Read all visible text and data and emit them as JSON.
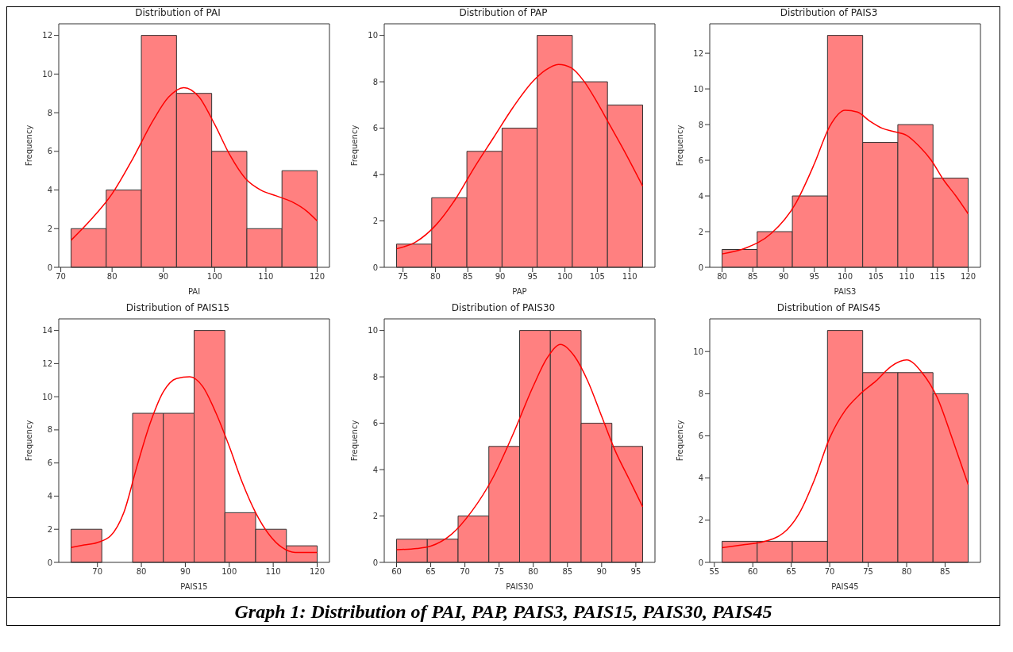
{
  "chart_data": [
    {
      "type": "histogram",
      "title": "Distribution of PAI",
      "xlabel": "PAI",
      "ylabel": "Frequency",
      "xlim": [
        69.6,
        122.4
      ],
      "xticks": [
        70,
        80,
        90,
        100,
        110,
        120
      ],
      "ylim": [
        0,
        12.6
      ],
      "yticks": [
        0,
        2,
        4,
        6,
        8,
        10,
        12
      ],
      "series": [
        {
          "type": "histogram",
          "color": "#ff8080",
          "bins": [
            72,
            78.86,
            85.71,
            92.57,
            99.43,
            106.29,
            113.14,
            120
          ],
          "values": [
            2,
            4,
            12,
            9,
            6,
            2,
            5
          ]
        },
        {
          "type": "line",
          "color": "#ff0000",
          "x": [
            72,
            76,
            80,
            84,
            88,
            91,
            94,
            97,
            100,
            103,
            106,
            109,
            112,
            115,
            118,
            120
          ],
          "values": [
            1.4,
            2.5,
            3.8,
            5.6,
            7.6,
            8.8,
            9.3,
            8.8,
            7.4,
            5.8,
            4.6,
            4.0,
            3.7,
            3.4,
            2.9,
            2.4
          ]
        }
      ]
    },
    {
      "type": "histogram",
      "title": "Distribution of PAP",
      "xlabel": "PAP",
      "ylabel": "Frequency",
      "xlim": [
        72.1,
        113.9
      ],
      "xticks": [
        75,
        80,
        85,
        90,
        95,
        100,
        105,
        110
      ],
      "ylim": [
        0,
        10.5
      ],
      "yticks": [
        0,
        2,
        4,
        6,
        8,
        10
      ],
      "series": [
        {
          "type": "histogram",
          "color": "#ff8080",
          "bins": [
            74,
            79.43,
            84.86,
            90.29,
            95.71,
            101.14,
            106.57,
            112
          ],
          "values": [
            1,
            3,
            5,
            6,
            10,
            8,
            7
          ]
        },
        {
          "type": "line",
          "color": "#ff0000",
          "x": [
            74,
            77,
            80,
            83,
            86,
            89,
            92,
            95,
            97,
            99,
            101,
            103,
            105,
            107,
            109,
            112
          ],
          "values": [
            0.8,
            1.1,
            1.8,
            2.9,
            4.3,
            5.6,
            6.9,
            8.0,
            8.5,
            8.75,
            8.6,
            8.0,
            7.1,
            6.1,
            5.1,
            3.5
          ]
        }
      ]
    },
    {
      "type": "histogram",
      "title": "Distribution of PAIS3",
      "xlabel": "PAIS3",
      "ylabel": "Frequency",
      "xlim": [
        78,
        122
      ],
      "xticks": [
        80,
        85,
        90,
        95,
        100,
        105,
        110,
        115,
        120
      ],
      "ylim": [
        0,
        13.65
      ],
      "yticks": [
        0,
        2,
        4,
        6,
        8,
        10,
        12
      ],
      "series": [
        {
          "type": "histogram",
          "color": "#ff8080",
          "bins": [
            80,
            85.71,
            91.43,
            97.14,
            102.86,
            108.57,
            114.29,
            120
          ],
          "values": [
            1,
            2,
            4,
            13,
            7,
            8,
            5
          ]
        },
        {
          "type": "line",
          "color": "#ff0000",
          "x": [
            80,
            84,
            88,
            92,
            95,
            97.5,
            100,
            102,
            104,
            106,
            108,
            110,
            112,
            114,
            116,
            118,
            120
          ],
          "values": [
            0.75,
            1.1,
            1.9,
            3.6,
            5.8,
            7.9,
            8.8,
            8.7,
            8.2,
            7.8,
            7.6,
            7.4,
            6.8,
            6.0,
            4.9,
            4.0,
            3.0
          ]
        }
      ]
    },
    {
      "type": "histogram",
      "title": "Distribution of PAIS15",
      "xlabel": "PAIS15",
      "ylabel": "Frequency",
      "xlim": [
        61.2,
        122.8
      ],
      "xticks": [
        70,
        80,
        90,
        100,
        110,
        120
      ],
      "ylim": [
        0,
        14.7
      ],
      "yticks": [
        0,
        2,
        4,
        6,
        8,
        10,
        12,
        14
      ],
      "series": [
        {
          "type": "histogram",
          "color": "#ff8080",
          "bins": [
            64,
            71,
            78,
            85,
            92,
            99,
            106,
            113,
            120
          ],
          "values": [
            2,
            0,
            9,
            9,
            14,
            3,
            2,
            1
          ]
        },
        {
          "type": "line",
          "color": "#ff0000",
          "x": [
            64,
            67,
            70,
            73,
            76,
            79,
            82,
            85,
            88,
            91,
            94,
            97,
            100,
            103,
            106,
            109,
            112,
            115,
            120
          ],
          "values": [
            0.9,
            1.05,
            1.2,
            1.6,
            3.0,
            5.8,
            8.4,
            10.3,
            11.1,
            11.2,
            10.6,
            9.0,
            7.0,
            4.8,
            3.0,
            1.7,
            0.9,
            0.6,
            0.6
          ]
        }
      ]
    },
    {
      "type": "histogram",
      "title": "Distribution of PAIS30",
      "xlabel": "PAIS30",
      "ylabel": "Frequency",
      "xlim": [
        58.2,
        97.8
      ],
      "xticks": [
        60,
        65,
        70,
        75,
        80,
        85,
        90,
        95
      ],
      "ylim": [
        0,
        10.5
      ],
      "yticks": [
        0,
        2,
        4,
        6,
        8,
        10
      ],
      "series": [
        {
          "type": "histogram",
          "color": "#ff8080",
          "bins": [
            60,
            64.5,
            69,
            73.5,
            78,
            82.5,
            87,
            91.5,
            96
          ],
          "values": [
            1,
            1,
            2,
            5,
            10,
            10,
            6,
            5
          ]
        },
        {
          "type": "line",
          "color": "#ff0000",
          "x": [
            60,
            63,
            65,
            68,
            71,
            74,
            77,
            80,
            82,
            84,
            86,
            88,
            90,
            92,
            94,
            96
          ],
          "values": [
            0.55,
            0.6,
            0.7,
            1.2,
            2.2,
            3.6,
            5.5,
            7.6,
            8.8,
            9.4,
            8.9,
            7.8,
            6.3,
            4.8,
            3.6,
            2.4
          ]
        }
      ]
    },
    {
      "type": "histogram",
      "title": "Distribution of PAIS45",
      "xlabel": "PAIS45",
      "ylabel": "Frequency",
      "xlim": [
        54.4,
        89.6
      ],
      "xticks": [
        55,
        60,
        65,
        70,
        75,
        80,
        85
      ],
      "ylim": [
        0,
        11.55
      ],
      "yticks": [
        0,
        2,
        4,
        6,
        8,
        10
      ],
      "annotations": [
        "Graph 1: Distribution of PAI, PAP, PAIS3, PAIS15, PAIS30, PAIS45"
      ],
      "series": [
        {
          "type": "histogram",
          "color": "#ff8080",
          "bins": [
            56,
            60.57,
            65.14,
            69.71,
            74.29,
            78.86,
            83.43,
            88
          ],
          "values": [
            1,
            1,
            1,
            11,
            9,
            9,
            8
          ]
        },
        {
          "type": "line",
          "color": "#ff0000",
          "x": [
            56,
            59,
            61,
            64,
            66,
            68,
            70,
            72,
            74,
            76,
            78,
            80,
            82,
            84,
            86,
            88
          ],
          "values": [
            0.7,
            0.85,
            0.95,
            1.4,
            2.3,
            3.9,
            5.9,
            7.2,
            8.0,
            8.6,
            9.3,
            9.6,
            9.0,
            7.8,
            5.8,
            3.7
          ]
        }
      ]
    }
  ]
}
